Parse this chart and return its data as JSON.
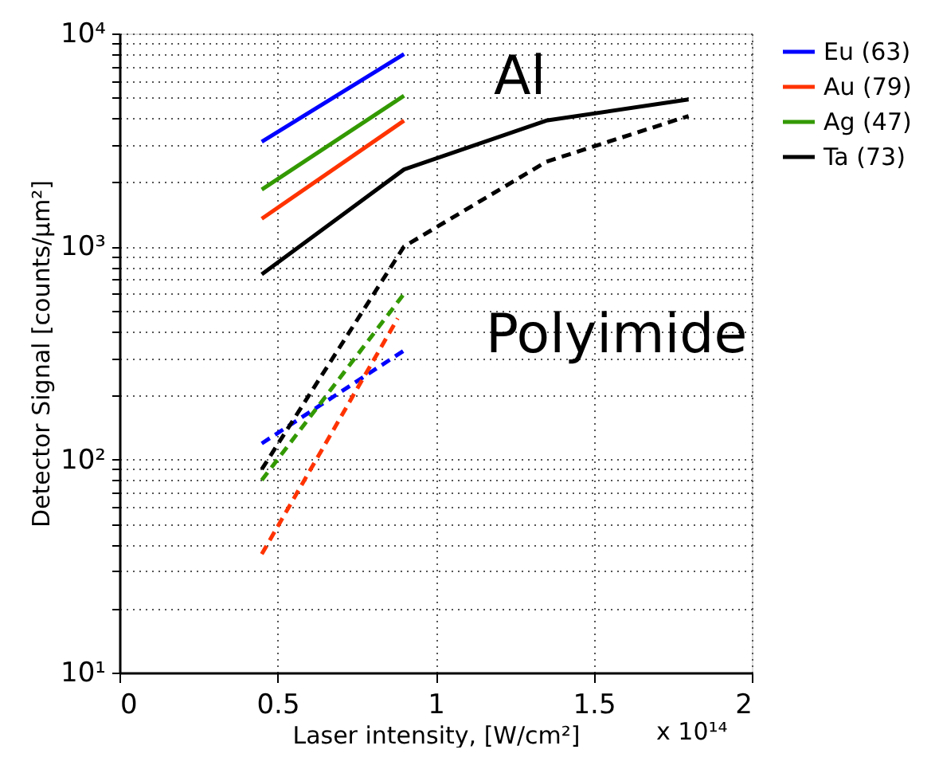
{
  "chart_data": {
    "type": "line",
    "xlabel": "Laser intensity, [W/cm²]",
    "ylabel": "Detector Signal [counts/μm²]",
    "log": "y",
    "xlim": [
      0,
      2
    ],
    "xticks": [
      0,
      0.5,
      1,
      1.5,
      2
    ],
    "ylim": [
      10,
      10000
    ],
    "yticks": [
      {
        "value": 10,
        "label": "10¹"
      },
      {
        "value": 100,
        "label": "10²"
      },
      {
        "value": 1000,
        "label": "10³"
      },
      {
        "value": 10000,
        "label": "10⁴"
      }
    ],
    "grid": true,
    "legend": "top right",
    "marker": "none",
    "annotations": [
      "Al",
      "Polyimide",
      "x 10¹⁴"
    ],
    "series": [
      {
        "name": "Eu (63)",
        "color": "#0000ff",
        "line_style": "solid",
        "x": [
          0.45,
          0.9
        ],
        "values": [
          3100,
          8000
        ]
      },
      {
        "name": "Au (79)",
        "color": "#ff3300",
        "line_style": "solid",
        "x": [
          0.45,
          0.9
        ],
        "values": [
          1350,
          3900
        ]
      },
      {
        "name": "Ag (47)",
        "color": "#339900",
        "line_style": "solid",
        "x": [
          0.45,
          0.9
        ],
        "values": [
          1850,
          5100
        ]
      },
      {
        "name": "Ta (73)",
        "color": "#000000",
        "line_style": "solid",
        "x": [
          0.45,
          0.9,
          1.35,
          1.8
        ],
        "values": [
          740,
          2300,
          3900,
          4900
        ]
      },
      {
        "color": "#0000ff",
        "line_style": "dashed",
        "x": [
          0.45,
          0.9
        ],
        "values": [
          119,
          325
        ]
      },
      {
        "color": "#ff3300",
        "line_style": "dashed",
        "x": [
          0.45,
          0.88
        ],
        "values": [
          36,
          460
        ]
      },
      {
        "color": "#339900",
        "line_style": "dashed",
        "x": [
          0.45,
          0.9
        ],
        "values": [
          80,
          600
        ]
      },
      {
        "color": "#000000",
        "line_style": "dashed",
        "x": [
          0.45,
          0.9,
          1.35,
          1.8
        ],
        "values": [
          90,
          1000,
          2500,
          4100
        ]
      }
    ]
  }
}
